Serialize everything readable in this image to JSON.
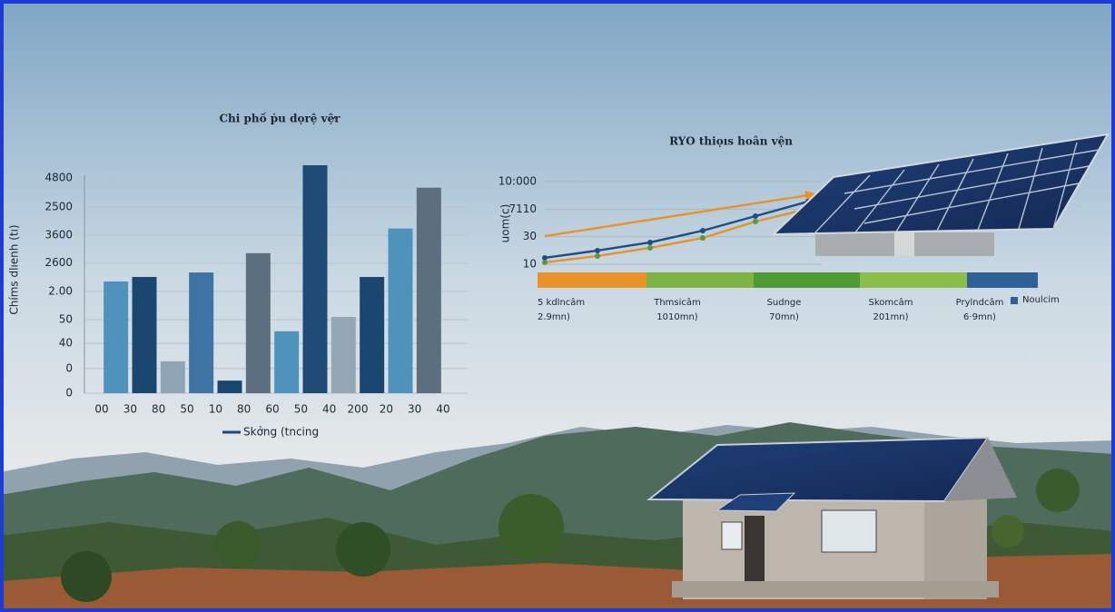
{
  "chart_data": [
    {
      "type": "bar",
      "title": "Chi phố ṗu dọrệ vệ̛r",
      "y_label": "Chíms dlıenh (tı)",
      "legend": "Skởng (tncing",
      "legend_color": "#1d4b76",
      "categories": [
        "00",
        "30",
        "80",
        "50",
        "10",
        "80",
        "60",
        "50",
        "40",
        "200",
        "20",
        "30",
        "40"
      ],
      "values": [
        2490,
        2590,
        710,
        2690,
        280,
        3120,
        1380,
        5080,
        1700,
        2590,
        3670,
        4580,
        null
      ],
      "colors": [
        "#4f93bd",
        "#1a4670",
        "#8fa5b5",
        "#3e74a3",
        "#1a4670",
        "#5d6e7e",
        "#4f93bd",
        "#1d4b76",
        "#95a7b4",
        "#1a4670",
        "#4f93bd",
        "#5d6e7e",
        null
      ],
      "ylim": [
        0,
        5100
      ],
      "yticks": [
        4800,
        {
          "value": 4150,
          "label": "2500"
        },
        {
          "value": 3520,
          "label": "3600"
        },
        {
          "value": 2900,
          "label": "2600"
        },
        {
          "value": 2270,
          "label": "2.00"
        },
        {
          "value": 1640,
          "label": "50"
        },
        {
          "value": 1110,
          "label": "40"
        },
        {
          "value": 550,
          "label": "0"
        },
        0
      ],
      "grid": true
    },
    {
      "type": "line",
      "title": "RYO thiọıs hoân vện",
      "y_label": "uom(c)",
      "categories": [
        null,
        null,
        null,
        null,
        null,
        null
      ],
      "series": [
        {
          "color": "#e8922a",
          "values": [
            3410,
            4400,
            5390,
            6380,
            7370,
            8350
          ],
          "arrow": true
        },
        {
          "color": "#1f4e85",
          "values": [
            780,
            1660,
            2650,
            4070,
            5830,
            7590
          ],
          "markers": true,
          "marker_color": "#1f4e85"
        },
        {
          "color": "#e8922a",
          "values": [
            230,
            1000,
            1990,
            3190,
            5170,
            6710
          ],
          "markers": true,
          "marker_color": "#5a9a3a"
        }
      ],
      "ylim": [
        10,
        10000
      ],
      "yticks": [
        {
          "value": 10000,
          "label": "10:000"
        },
        {
          "value": 6670,
          "label": "7110"
        },
        {
          "value": 3340,
          "label": "30"
        },
        10
      ],
      "grid": true,
      "bands": [
        {
          "label": "5 kdlncâm",
          "sublabel": "2.9mn)",
          "color": "#e8922a"
        },
        {
          "label": "Thmsicâm",
          "sublabel": "1010mn)",
          "color": "#7cb342"
        },
        {
          "label": "Sudnge",
          "sublabel": "70mn)",
          "color": "#4f9a35"
        },
        {
          "label": "Skomcâm",
          "sublabel": "201mn)",
          "color": "#8bbd4a"
        },
        {
          "label": "Prylndcâm",
          "sublabel": "6·9mn)",
          "color": "#2f6098"
        }
      ],
      "legend": {
        "name": "Noulcim",
        "color": "#2f6098"
      }
    }
  ]
}
